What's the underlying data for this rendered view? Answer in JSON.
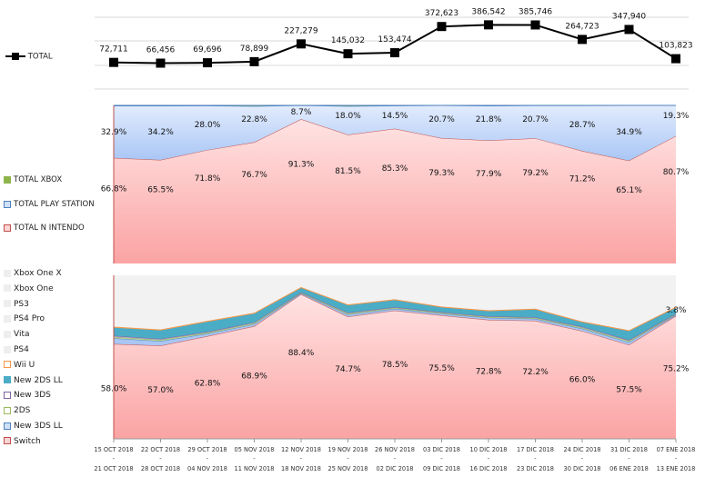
{
  "chart_data": [
    {
      "type": "line",
      "title": "",
      "legend": {
        "label": "TOTAL",
        "position": "left"
      },
      "series": [
        {
          "name": "TOTAL",
          "color": "#000000",
          "values": [
            72711,
            66456,
            69696,
            78899,
            227279,
            145032,
            153474,
            372623,
            386542,
            385746,
            264723,
            347940,
            103823
          ],
          "labels": [
            "72,711",
            "66,456",
            "69,696",
            "78,899",
            "227,279",
            "145,032",
            "153,474",
            "372,623",
            "386,542",
            "385,746",
            "264,723",
            "347,940",
            "103,823"
          ]
        }
      ],
      "ylim": [
        -150000,
        450000
      ],
      "grid": true
    },
    {
      "type": "area",
      "stacked": "percent",
      "legend_position": "left",
      "series": [
        {
          "name": "TOTAL NINTENDO",
          "legend_label": "TOTAL N INTENDO",
          "color": "#f4a6a6",
          "values": [
            66.8,
            65.5,
            71.8,
            76.7,
            91.3,
            81.5,
            85.3,
            79.3,
            77.9,
            79.2,
            71.2,
            65.1,
            80.7
          ],
          "labels": [
            "66.8%",
            "65.5%",
            "71.8%",
            "76.7%",
            "91.3%",
            "81.5%",
            "85.3%",
            "79.3%",
            "77.9%",
            "79.2%",
            "71.2%",
            "65.1%",
            "80.7%"
          ]
        },
        {
          "name": "TOTAL PLAY STATION",
          "legend_label": "TOTAL PLAY STATION",
          "color": "#a9c6f5",
          "values": [
            32.9,
            34.2,
            28.0,
            22.8,
            8.7,
            18.0,
            14.5,
            20.7,
            21.8,
            20.7,
            28.7,
            34.9,
            19.3
          ],
          "labels": [
            "32.9%",
            "34.2%",
            "28.0%",
            "22.8%",
            "8.7%",
            "18.0%",
            "14.5%",
            "20.7%",
            "21.8%",
            "20.7%",
            "28.7%",
            "34.9%",
            "19.3%"
          ]
        },
        {
          "name": "TOTAL XBOX",
          "legend_label": "TOTAL XBOX",
          "color": "#8db44a",
          "values": [
            0.3,
            0.3,
            0.2,
            0.5,
            0.0,
            0.5,
            0.2,
            0.0,
            0.3,
            0.1,
            0.1,
            0.0,
            0.0
          ]
        }
      ],
      "ylim": [
        0,
        100
      ]
    },
    {
      "type": "area",
      "stacked": "percent",
      "legend_position": "left",
      "series": [
        {
          "name": "Switch",
          "color": "#f4a6a6",
          "values": [
            58.0,
            57.0,
            62.8,
            68.9,
            88.4,
            74.7,
            78.5,
            75.5,
            72.8,
            72.2,
            66.0,
            57.5,
            75.2
          ],
          "labels": [
            "58.0%",
            "57.0%",
            "62.8%",
            "68.9%",
            "88.4%",
            "74.7%",
            "78.5%",
            "75.5%",
            "72.8%",
            "72.2%",
            "66.0%",
            "57.5%",
            "75.2%"
          ]
        },
        {
          "name": "New 3DS LL",
          "color": "#a9c6f5",
          "values": [
            3.5,
            2.8,
            1.5,
            1.2,
            0.6,
            1.3,
            1.1,
            1.0,
            1.2,
            1.2,
            1.4,
            1.6,
            0.6
          ]
        },
        {
          "name": "2DS",
          "color": "#c4df9b",
          "values": [
            0.8,
            0.7,
            0.6,
            0.6,
            0.3,
            0.6,
            0.5,
            0.5,
            0.5,
            0.5,
            0.6,
            0.7,
            0.4
          ]
        },
        {
          "name": "New 3DS",
          "color": "#b4a7d6",
          "values": [
            0.7,
            0.6,
            0.5,
            0.5,
            0.3,
            0.5,
            0.4,
            0.4,
            0.4,
            0.4,
            0.5,
            0.6,
            0.3
          ]
        },
        {
          "name": "New 2DS LL",
          "color": "#4bacc6",
          "values": [
            5.0,
            5.2,
            6.2,
            5.3,
            2.8,
            4.6,
            4.4,
            3.0,
            3.2,
            4.8,
            2.8,
            5.5,
            3.8
          ],
          "labels": [
            "",
            "",
            "",
            "",
            "",
            "",
            "",
            "",
            "",
            "",
            "",
            "",
            "3.8%"
          ]
        },
        {
          "name": "Wii U",
          "color": "#f8b683",
          "values": [
            0.3,
            0.3,
            0.3,
            0.3,
            0.1,
            0.2,
            0.2,
            0.2,
            0.2,
            0.2,
            0.2,
            0.2,
            0.1
          ]
        },
        {
          "name": "PS4",
          "color": "#f2f2f2",
          "values": []
        },
        {
          "name": "Vita",
          "color": "#f2f2f2",
          "values": []
        },
        {
          "name": "PS4 Pro",
          "color": "#f2f2f2",
          "values": []
        },
        {
          "name": "PS3",
          "color": "#f2f2f2",
          "values": []
        },
        {
          "name": "Xbox One",
          "color": "#f2f2f2",
          "values": []
        },
        {
          "name": "Xbox One X",
          "color": "#f2f2f2",
          "values": []
        }
      ],
      "ylim": [
        0,
        100
      ]
    }
  ],
  "categories_top": [
    "15 OCT 2018",
    "22 OCT 2018",
    "29 OCT 2018",
    "05 NOV 2018",
    "12 NOV 2018",
    "19 NOV 2018",
    "26 NOV 2018",
    "03 DIC 2018",
    "10 DIC 2018",
    "17 DIC 2018",
    "24 DIC 2018",
    "31 DIC 2018",
    "07 ENE 2018"
  ],
  "categories_bottom": [
    "21 OCT 2018",
    "28 OCT 2018",
    "04 NOV 2018",
    "11 NOV 2018",
    "18 NOV 2018",
    "25 NOV 2018",
    "02 DIC 2018",
    "09 DIC 2018",
    "16 DIC 2018",
    "23 DIC 2018",
    "30 DIC 2018",
    "06 ENE 2018",
    "13 ENE 2018"
  ],
  "category_separator": "-"
}
